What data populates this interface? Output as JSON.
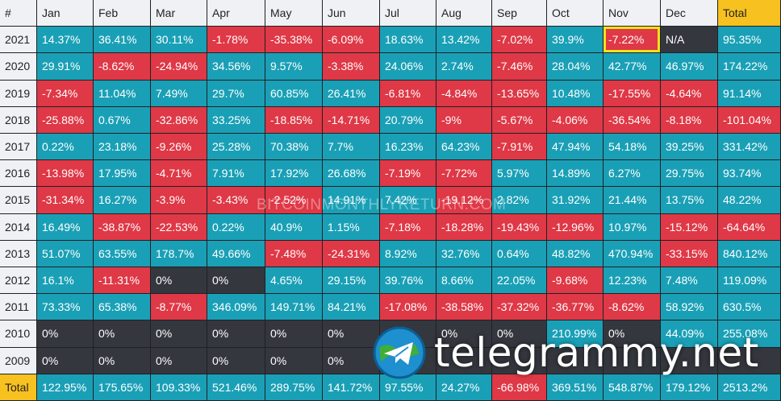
{
  "header": [
    "#",
    "Jan",
    "Feb",
    "Mar",
    "Apr",
    "May",
    "Jun",
    "Jul",
    "Aug",
    "Sep",
    "Oct",
    "Nov",
    "Dec",
    "Total"
  ],
  "rows": [
    {
      "label": "2021",
      "cells": [
        [
          "14.37%",
          "pos"
        ],
        [
          "36.41%",
          "pos"
        ],
        [
          "30.11%",
          "pos"
        ],
        [
          "-1.78%",
          "neg"
        ],
        [
          "-35.38%",
          "neg"
        ],
        [
          "-6.09%",
          "neg"
        ],
        [
          "18.63%",
          "pos"
        ],
        [
          "13.42%",
          "pos"
        ],
        [
          "-7.02%",
          "neg"
        ],
        [
          "39.9%",
          "pos"
        ],
        [
          "-7.22%",
          "neg"
        ],
        [
          "N/A",
          "na"
        ],
        [
          "95.35%",
          "pos"
        ]
      ]
    },
    {
      "label": "2020",
      "cells": [
        [
          "29.91%",
          "pos"
        ],
        [
          "-8.62%",
          "neg"
        ],
        [
          "-24.94%",
          "neg"
        ],
        [
          "34.56%",
          "pos"
        ],
        [
          "9.57%",
          "pos"
        ],
        [
          "-3.38%",
          "neg"
        ],
        [
          "24.06%",
          "pos"
        ],
        [
          "2.74%",
          "pos"
        ],
        [
          "-7.46%",
          "neg"
        ],
        [
          "28.04%",
          "pos"
        ],
        [
          "42.77%",
          "pos"
        ],
        [
          "46.97%",
          "pos"
        ],
        [
          "174.22%",
          "pos"
        ]
      ]
    },
    {
      "label": "2019",
      "cells": [
        [
          "-7.34%",
          "neg"
        ],
        [
          "11.04%",
          "pos"
        ],
        [
          "7.49%",
          "pos"
        ],
        [
          "29.7%",
          "pos"
        ],
        [
          "60.85%",
          "pos"
        ],
        [
          "26.41%",
          "pos"
        ],
        [
          "-6.81%",
          "neg"
        ],
        [
          "-4.84%",
          "neg"
        ],
        [
          "-13.65%",
          "neg"
        ],
        [
          "10.48%",
          "pos"
        ],
        [
          "-17.55%",
          "neg"
        ],
        [
          "-4.64%",
          "neg"
        ],
        [
          "91.14%",
          "pos"
        ]
      ]
    },
    {
      "label": "2018",
      "cells": [
        [
          "-25.88%",
          "neg"
        ],
        [
          "0.67%",
          "pos"
        ],
        [
          "-32.86%",
          "neg"
        ],
        [
          "33.25%",
          "pos"
        ],
        [
          "-18.85%",
          "neg"
        ],
        [
          "-14.71%",
          "neg"
        ],
        [
          "20.79%",
          "pos"
        ],
        [
          "-9%",
          "neg"
        ],
        [
          "-5.67%",
          "neg"
        ],
        [
          "-4.06%",
          "neg"
        ],
        [
          "-36.54%",
          "neg"
        ],
        [
          "-8.18%",
          "neg"
        ],
        [
          "-101.04%",
          "neg"
        ]
      ]
    },
    {
      "label": "2017",
      "cells": [
        [
          "0.22%",
          "pos"
        ],
        [
          "23.18%",
          "pos"
        ],
        [
          "-9.26%",
          "neg"
        ],
        [
          "25.28%",
          "pos"
        ],
        [
          "70.38%",
          "pos"
        ],
        [
          "7.7%",
          "pos"
        ],
        [
          "16.23%",
          "pos"
        ],
        [
          "64.23%",
          "pos"
        ],
        [
          "-7.91%",
          "neg"
        ],
        [
          "47.94%",
          "pos"
        ],
        [
          "54.18%",
          "pos"
        ],
        [
          "39.25%",
          "pos"
        ],
        [
          "331.42%",
          "pos"
        ]
      ]
    },
    {
      "label": "2016",
      "cells": [
        [
          "-13.98%",
          "neg"
        ],
        [
          "17.95%",
          "pos"
        ],
        [
          "-4.71%",
          "neg"
        ],
        [
          "7.91%",
          "pos"
        ],
        [
          "17.92%",
          "pos"
        ],
        [
          "26.68%",
          "pos"
        ],
        [
          "-7.19%",
          "neg"
        ],
        [
          "-7.72%",
          "neg"
        ],
        [
          "5.97%",
          "pos"
        ],
        [
          "14.89%",
          "pos"
        ],
        [
          "6.27%",
          "pos"
        ],
        [
          "29.75%",
          "pos"
        ],
        [
          "93.74%",
          "pos"
        ]
      ]
    },
    {
      "label": "2015",
      "cells": [
        [
          "-31.34%",
          "neg"
        ],
        [
          "16.27%",
          "pos"
        ],
        [
          "-3.9%",
          "neg"
        ],
        [
          "-3.43%",
          "neg"
        ],
        [
          "-2.52%",
          "neg"
        ],
        [
          "14.91%",
          "pos"
        ],
        [
          "7.42%",
          "pos"
        ],
        [
          "-19.12%",
          "neg"
        ],
        [
          "2.82%",
          "pos"
        ],
        [
          "31.92%",
          "pos"
        ],
        [
          "21.44%",
          "pos"
        ],
        [
          "13.75%",
          "pos"
        ],
        [
          "48.22%",
          "pos"
        ]
      ]
    },
    {
      "label": "2014",
      "cells": [
        [
          "16.49%",
          "pos"
        ],
        [
          "-38.87%",
          "neg"
        ],
        [
          "-22.53%",
          "neg"
        ],
        [
          "0.22%",
          "pos"
        ],
        [
          "40.9%",
          "pos"
        ],
        [
          "1.15%",
          "pos"
        ],
        [
          "-7.18%",
          "neg"
        ],
        [
          "-18.28%",
          "neg"
        ],
        [
          "-19.43%",
          "neg"
        ],
        [
          "-12.96%",
          "neg"
        ],
        [
          "10.97%",
          "pos"
        ],
        [
          "-15.12%",
          "neg"
        ],
        [
          "-64.64%",
          "neg"
        ]
      ]
    },
    {
      "label": "2013",
      "cells": [
        [
          "51.07%",
          "pos"
        ],
        [
          "63.55%",
          "pos"
        ],
        [
          "178.7%",
          "pos"
        ],
        [
          "49.66%",
          "pos"
        ],
        [
          "-7.48%",
          "neg"
        ],
        [
          "-24.31%",
          "neg"
        ],
        [
          "8.92%",
          "pos"
        ],
        [
          "32.76%",
          "pos"
        ],
        [
          "0.64%",
          "pos"
        ],
        [
          "48.82%",
          "pos"
        ],
        [
          "470.94%",
          "pos"
        ],
        [
          "-33.15%",
          "neg"
        ],
        [
          "840.12%",
          "pos"
        ]
      ]
    },
    {
      "label": "2012",
      "cells": [
        [
          "16.1%",
          "pos"
        ],
        [
          "-11.31%",
          "neg"
        ],
        [
          "0%",
          "zero"
        ],
        [
          "0%",
          "zero"
        ],
        [
          "4.65%",
          "pos"
        ],
        [
          "29.15%",
          "pos"
        ],
        [
          "39.76%",
          "pos"
        ],
        [
          "8.66%",
          "pos"
        ],
        [
          "22.05%",
          "pos"
        ],
        [
          "-9.68%",
          "neg"
        ],
        [
          "12.23%",
          "pos"
        ],
        [
          "7.48%",
          "pos"
        ],
        [
          "119.09%",
          "pos"
        ]
      ]
    },
    {
      "label": "2011",
      "cells": [
        [
          "73.33%",
          "pos"
        ],
        [
          "65.38%",
          "pos"
        ],
        [
          "-8.77%",
          "neg"
        ],
        [
          "346.09%",
          "pos"
        ],
        [
          "149.71%",
          "pos"
        ],
        [
          "84.21%",
          "pos"
        ],
        [
          "-17.08%",
          "neg"
        ],
        [
          "-38.58%",
          "neg"
        ],
        [
          "-37.32%",
          "neg"
        ],
        [
          "-36.77%",
          "neg"
        ],
        [
          "-8.62%",
          "neg"
        ],
        [
          "58.92%",
          "pos"
        ],
        [
          "630.5%",
          "pos"
        ]
      ]
    },
    {
      "label": "2010",
      "cells": [
        [
          "0%",
          "zero"
        ],
        [
          "0%",
          "zero"
        ],
        [
          "0%",
          "zero"
        ],
        [
          "0%",
          "zero"
        ],
        [
          "0%",
          "zero"
        ],
        [
          "0%",
          "zero"
        ],
        [
          "",
          "zero"
        ],
        [
          "0%",
          "zero"
        ],
        [
          "0%",
          "zero"
        ],
        [
          "210.99%",
          "pos"
        ],
        [
          "0%",
          "zero"
        ],
        [
          "44.09%",
          "pos"
        ],
        [
          "255.08%",
          "pos"
        ]
      ]
    },
    {
      "label": "2009",
      "cells": [
        [
          "0%",
          "zero"
        ],
        [
          "0%",
          "zero"
        ],
        [
          "0%",
          "zero"
        ],
        [
          "0%",
          "zero"
        ],
        [
          "0%",
          "zero"
        ],
        [
          "0%",
          "zero"
        ],
        [
          "",
          "zero"
        ],
        [
          "",
          "zero"
        ],
        [
          "",
          "zero"
        ],
        [
          "",
          "zero"
        ],
        [
          "",
          "zero"
        ],
        [
          "",
          "zero"
        ],
        [
          "",
          "zero"
        ]
      ]
    },
    {
      "label": "Total",
      "cells": [
        [
          "122.95%",
          "pos"
        ],
        [
          "175.65%",
          "pos"
        ],
        [
          "109.33%",
          "pos"
        ],
        [
          "521.46%",
          "pos"
        ],
        [
          "289.75%",
          "pos"
        ],
        [
          "141.72%",
          "pos"
        ],
        [
          "97.55%",
          "pos"
        ],
        [
          "24.27%",
          "pos"
        ],
        [
          "-66.98%",
          "neg"
        ],
        [
          "369.51%",
          "pos"
        ],
        [
          "548.87%",
          "pos"
        ],
        [
          "179.12%",
          "pos"
        ],
        [
          "2513.2%",
          "pos"
        ]
      ]
    }
  ],
  "highlighted_cell": {
    "row": 0,
    "col": 10
  },
  "watermark": "BITCOINMONTHLYRETURN.COM",
  "brand_text": "telegrammy.net",
  "colors": {
    "positive": "#1aa0b6",
    "negative": "#df3846",
    "neutral": "#34373e",
    "header": "#eff1f4",
    "total": "#f7c11f",
    "highlight": "#f2e11a"
  }
}
